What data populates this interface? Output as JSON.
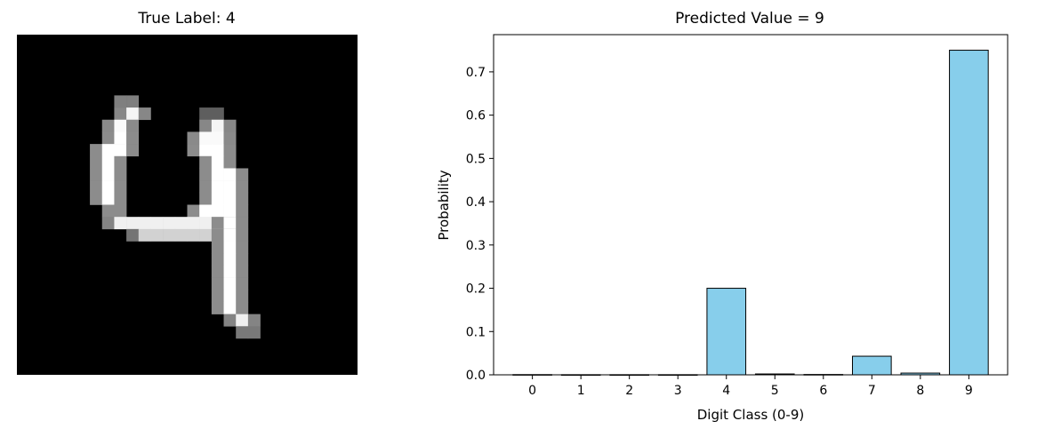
{
  "image_panel": {
    "title": "True Label: 4",
    "digit": "4"
  },
  "chart_data": {
    "type": "bar",
    "title": "Predicted Value = 9",
    "xlabel": "Digit Class (0-9)",
    "ylabel": "Probability",
    "categories": [
      "0",
      "1",
      "2",
      "3",
      "4",
      "5",
      "6",
      "7",
      "8",
      "9"
    ],
    "values": [
      0.0005,
      0.0003,
      0.0003,
      0.0003,
      0.2,
      0.002,
      0.0008,
      0.043,
      0.004,
      0.75
    ],
    "ylim": [
      0,
      0.786
    ],
    "yticks": [
      "0.0",
      "0.1",
      "0.2",
      "0.3",
      "0.4",
      "0.5",
      "0.6",
      "0.7"
    ],
    "bar_color": "#87ceeb",
    "edge_color": "#000000",
    "grid": false
  }
}
